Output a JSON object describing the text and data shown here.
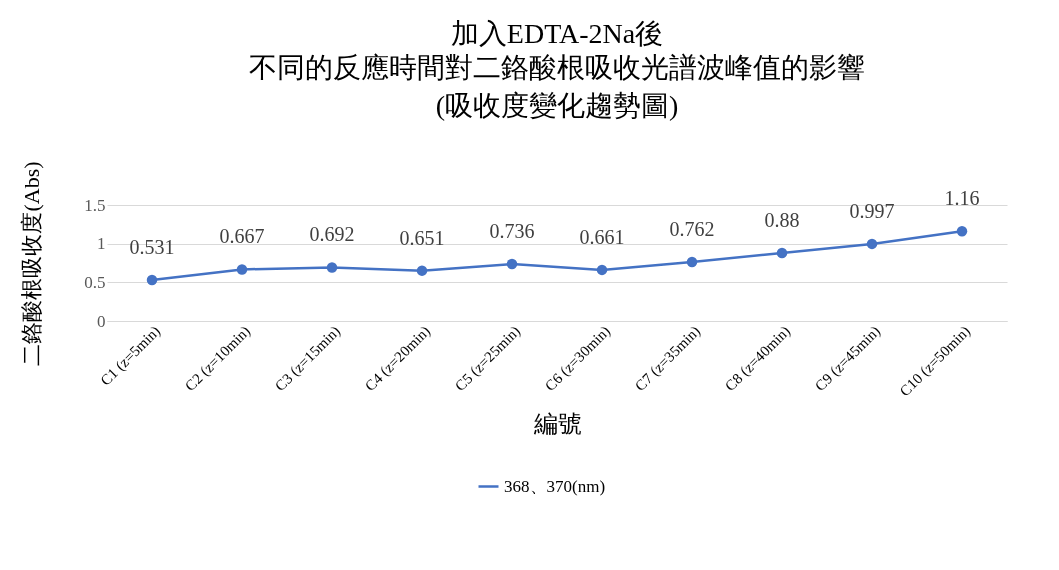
{
  "chart_data": {
    "type": "line",
    "title": "加入EDTA-2Na後",
    "subtitle": "不同的反應時間對二鉻酸根吸收光譜波峰值的影響(吸收度變化趨勢圖)",
    "xlabel": "編號",
    "ylabel": "二鉻酸根吸收度(Abs)",
    "categories": [
      "C1 (z=5min)",
      "C2 (z=10min)",
      "C3 (z=15min)",
      "C4 (z=20min)",
      "C5 (z=25min)",
      "C6 (z=30min)",
      "C7 (z=35min)",
      "C8 (z=40min)",
      "C9 (z=45min)",
      "C10 (z=50min)"
    ],
    "series": [
      {
        "name": "368、370(nm)",
        "color": "#4472c4",
        "values": [
          0.531,
          0.667,
          0.692,
          0.651,
          0.736,
          0.661,
          0.762,
          0.88,
          0.997,
          1.16
        ]
      }
    ],
    "ylim": [
      0,
      1.5
    ],
    "yticks": [
      0,
      0.5,
      1,
      1.5
    ],
    "grid": "y",
    "legend": "bottom",
    "marker": "circle",
    "data_labels": true
  }
}
